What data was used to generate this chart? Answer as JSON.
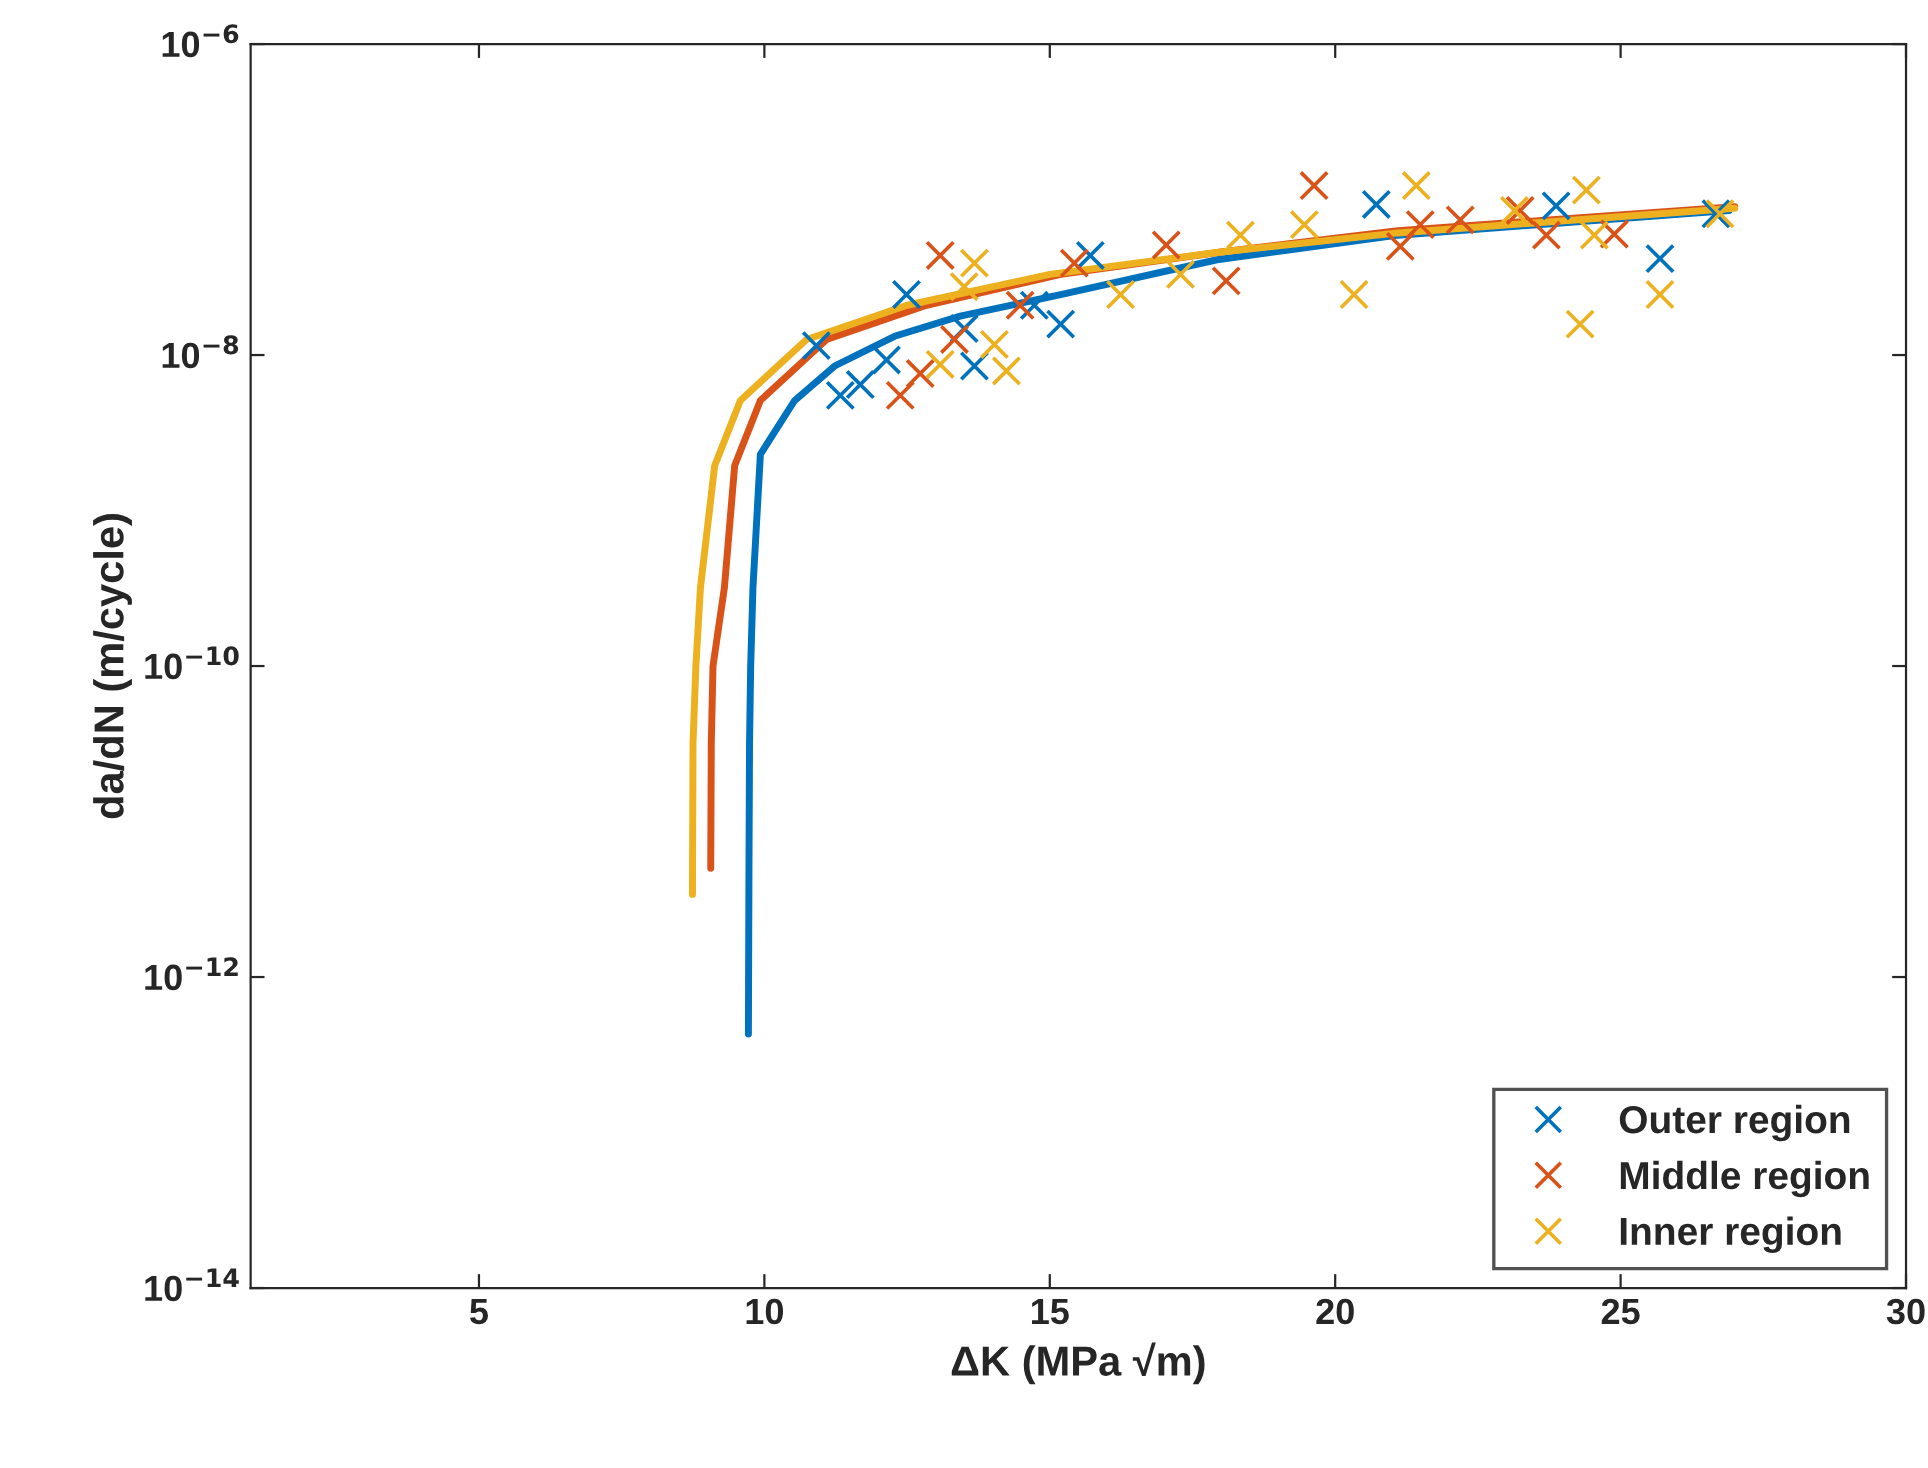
{
  "chart_data": {
    "type": "scatter",
    "xlabel": "ΔK (MPa √m)",
    "ylabel": "da/dN (m/cycle)",
    "log": "y",
    "xlim": [
      1,
      30
    ],
    "xticks": [
      5,
      10,
      15,
      20,
      25,
      30
    ],
    "ylim": [
      1e-14,
      1e-06
    ],
    "yticks": [
      {
        "value": 1e-14,
        "label": "10$^{−14}$"
      },
      {
        "value": 1e-12,
        "label": "10$^{−12}$"
      },
      {
        "value": 1e-10,
        "label": "10$^{−10}$"
      },
      {
        "value": 1e-08,
        "label": "10$^{−8}$"
      },
      {
        "value": 1e-06,
        "label": "10$^{−6}$"
      }
    ],
    "grid": false,
    "legend": "bottom right",
    "series": [
      {
        "name": "Outer region",
        "marker": "cross",
        "color": "#0072bd",
        "x": [
          12.49,
          10.91,
          11.33,
          11.68,
          12.14,
          13.68,
          15.19,
          15.71,
          14.73,
          13.5,
          20.72,
          23.87,
          25.69,
          26.67
        ],
        "values": [
          2.45e-08,
          1.15e-08,
          5.5e-09,
          6.46e-09,
          9.3e-09,
          8.5e-09,
          1.58e-08,
          4.37e-08,
          2.09e-08,
          1.48e-08,
          9.3e-08,
          9.1e-08,
          4.17e-08,
          8.1e-08
        ]
      },
      {
        "name": "Middle region",
        "marker": "cross",
        "color": "#d95319",
        "x": [
          13.08,
          12.38,
          12.73,
          15.43,
          17.04,
          18.09,
          14.48,
          13.33,
          19.63,
          21.49,
          22.19,
          23.24,
          21.14,
          23.7,
          24.89
        ],
        "values": [
          4.37e-08,
          5.5e-09,
          7.6e-09,
          3.9e-08,
          5.1e-08,
          3e-08,
          2.09e-08,
          1.26e-08,
          1.23e-07,
          6.9e-08,
          7.4e-08,
          8.5e-08,
          5e-08,
          5.9e-08,
          6e-08
        ]
      },
      {
        "name": "Inner region",
        "marker": "cross",
        "color": "#edb120",
        "x": [
          13.68,
          13.5,
          14.24,
          14.03,
          13.08,
          16.24,
          17.29,
          21.42,
          19.46,
          20.33,
          24.29,
          25.69,
          24.4,
          23.14,
          24.54,
          26.74,
          18.34
        ],
        "values": [
          3.9e-08,
          2.75e-08,
          7.9e-09,
          1.17e-08,
          8.7e-09,
          2.45e-08,
          3.3e-08,
          1.23e-07,
          6.9e-08,
          2.45e-08,
          1.58e-08,
          2.45e-08,
          1.15e-07,
          8.5e-08,
          5.9e-08,
          8.1e-08,
          5.9e-08
        ]
      },
      {
        "type": "line",
        "color": "#0072bd",
        "x": [
          9.72,
          9.73,
          9.74,
          9.76,
          9.8,
          9.93,
          10.53,
          11.23,
          12.28,
          13.43,
          15.19,
          17.93,
          21.1,
          26.9
        ],
        "values": [
          4.3e-13,
          5e-12,
          3.2e-11,
          1e-10,
          3.2e-10,
          2.3e-09,
          5.1e-09,
          8.5e-09,
          1.32e-08,
          1.78e-08,
          2.45e-08,
          4.1e-08,
          5.9e-08,
          8.5e-08
        ]
      },
      {
        "type": "line",
        "color": "#d95319",
        "x": [
          9.06,
          9.07,
          9.1,
          9.3,
          9.48,
          9.93,
          11.09,
          12.84,
          15.19,
          18,
          21.1,
          27
        ],
        "values": [
          5e-12,
          3.2e-11,
          1e-10,
          3.2e-10,
          1.95e-09,
          5.1e-09,
          1.26e-08,
          2.09e-08,
          3.3e-08,
          4.6e-08,
          6.3e-08,
          9e-08
        ]
      },
      {
        "type": "line",
        "color": "#edb120",
        "x": [
          8.74,
          8.75,
          8.8,
          8.88,
          9.13,
          9.58,
          10.74,
          12.5,
          15,
          18,
          21.1,
          27
        ],
        "values": [
          3.4e-12,
          3.2e-11,
          1e-10,
          3.2e-10,
          1.95e-09,
          5.1e-09,
          1.26e-08,
          2.09e-08,
          3.3e-08,
          4.6e-08,
          6.1e-08,
          8.8e-08
        ]
      }
    ]
  }
}
